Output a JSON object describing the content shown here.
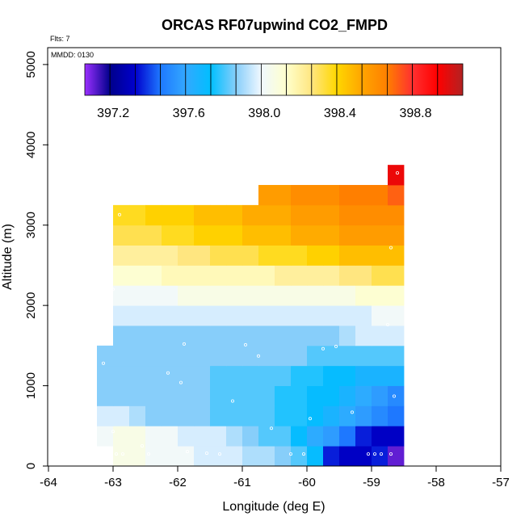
{
  "chart_data": {
    "type": "heatmap",
    "title": "ORCAS RF07upwind CO2_FMPD",
    "flights_label": "Flts: 7",
    "date_label": "MMDD: 0130",
    "xlabel": "Longitude (deg E)",
    "ylabel": "Altitude (m)",
    "xlim": [
      -64,
      -57
    ],
    "ylim": [
      0,
      5200
    ],
    "xticks": [
      "-64",
      "-63",
      "-62",
      "-61",
      "-60",
      "-59",
      "-58",
      "-57"
    ],
    "yticks": [
      "0",
      "1000",
      "2000",
      "3000",
      "4000",
      "5000"
    ],
    "colorbar": {
      "min": 397.05,
      "max": 399.05,
      "tick_values": [
        397.2,
        397.6,
        398.0,
        398.4,
        398.8
      ],
      "tick_labels": [
        "397.2",
        "397.6",
        "398.0",
        "398.4",
        "398.8"
      ],
      "colors": [
        "#9b30ff",
        "#00008b",
        "#0000cd",
        "#1e78ff",
        "#33a8ff",
        "#00bfff",
        "#87cefa",
        "#f0f8ff",
        "#ffffcc",
        "#ffe680",
        "#ffd700",
        "#ffa500",
        "#ff7f00",
        "#ff3030",
        "#ff0000",
        "#b22222"
      ],
      "segments": 15
    },
    "grid": {
      "lon_start": -63.25,
      "lon_step": 0.25,
      "alt_step": 250,
      "cells": [
        {
          "alt": 0,
          "lon0": -63.0,
          "values": [
            398.05,
            398.05,
            398.0,
            398.0,
            398.0,
            397.95,
            397.95,
            397.95,
            397.9,
            397.9,
            397.85,
            397.8,
            397.7,
            397.35,
            397.3,
            397.3,
            397.35,
            397.1
          ]
        },
        {
          "alt": 250,
          "lon0": -63.25,
          "values": [
            398.0,
            398.05,
            398.05,
            398.0,
            398.0,
            397.95,
            397.95,
            397.95,
            397.9,
            397.85,
            397.8,
            397.8,
            397.7,
            397.6,
            397.55,
            397.45,
            397.35,
            397.3,
            397.3
          ]
        },
        {
          "alt": 500,
          "lon0": -63.25,
          "values": [
            397.95,
            397.95,
            397.9,
            397.85,
            397.85,
            397.85,
            397.85,
            397.8,
            397.8,
            397.8,
            397.8,
            397.75,
            397.75,
            397.7,
            397.65,
            397.6,
            397.55,
            397.5,
            397.45
          ]
        },
        {
          "alt": 750,
          "lon0": -63.25,
          "values": [
            397.85,
            397.85,
            397.85,
            397.85,
            397.85,
            397.85,
            397.85,
            397.8,
            397.8,
            397.8,
            397.8,
            397.75,
            397.75,
            397.7,
            397.7,
            397.65,
            397.6,
            397.55,
            397.5
          ]
        },
        {
          "alt": 1000,
          "lon0": -63.25,
          "values": [
            397.85,
            397.85,
            397.85,
            397.85,
            397.85,
            397.85,
            397.85,
            397.8,
            397.8,
            397.8,
            397.8,
            397.8,
            397.75,
            397.75,
            397.7,
            397.7,
            397.65,
            397.65,
            397.65
          ]
        },
        {
          "alt": 1250,
          "lon0": -63.25,
          "values": [
            397.85,
            397.85,
            397.85,
            397.85,
            397.85,
            397.85,
            397.85,
            397.85,
            397.85,
            397.85,
            397.85,
            397.85,
            397.85,
            397.8,
            397.8,
            397.8,
            397.8,
            397.8,
            397.8
          ]
        },
        {
          "alt": 1500,
          "lon0": -63.0,
          "values": [
            397.85,
            397.85,
            397.85,
            397.85,
            397.85,
            397.85,
            397.85,
            397.85,
            397.85,
            397.85,
            397.85,
            397.85,
            397.85,
            397.85,
            397.9,
            397.95,
            397.95,
            397.95
          ]
        },
        {
          "alt": 1750,
          "lon0": -63.0,
          "values": [
            397.95,
            397.95,
            397.95,
            397.95,
            397.95,
            397.95,
            397.95,
            397.95,
            397.95,
            397.95,
            397.95,
            397.95,
            397.95,
            397.95,
            397.95,
            397.95,
            398.0,
            398.0
          ]
        },
        {
          "alt": 2000,
          "lon0": -63.0,
          "values": [
            398.0,
            398.0,
            398.0,
            398.0,
            398.05,
            398.05,
            398.05,
            398.05,
            398.05,
            398.05,
            398.05,
            398.05,
            398.05,
            398.05,
            398.05,
            398.1,
            398.1,
            398.1
          ]
        },
        {
          "alt": 2250,
          "lon0": -63.0,
          "values": [
            398.1,
            398.1,
            398.1,
            398.15,
            398.15,
            398.15,
            398.15,
            398.15,
            398.15,
            398.15,
            398.2,
            398.2,
            398.2,
            398.2,
            398.25,
            398.25,
            398.3,
            398.3
          ]
        },
        {
          "alt": 2500,
          "lon0": -63.0,
          "values": [
            398.2,
            398.2,
            398.2,
            398.2,
            398.25,
            398.25,
            398.3,
            398.3,
            398.3,
            398.35,
            398.35,
            398.35,
            398.4,
            398.4,
            398.45,
            398.45,
            398.45,
            398.45
          ]
        },
        {
          "alt": 2750,
          "lon0": -63.0,
          "values": [
            398.3,
            398.3,
            398.3,
            398.35,
            398.35,
            398.4,
            398.4,
            398.4,
            398.45,
            398.45,
            398.45,
            398.5,
            398.5,
            398.5,
            398.55,
            398.55,
            398.55,
            398.55
          ]
        },
        {
          "alt": 3000,
          "lon0": -63.0,
          "values": [
            398.35,
            398.35,
            398.4,
            398.4,
            398.4,
            398.45,
            398.45,
            398.45,
            398.5,
            398.5,
            398.5,
            398.55,
            398.55,
            398.55,
            398.6,
            398.6,
            398.6,
            398.6
          ]
        },
        {
          "alt": 3250,
          "lon0": -60.75,
          "values": [
            398.55,
            398.55,
            398.6,
            398.6,
            398.6,
            398.65,
            398.65,
            398.65,
            398.7
          ]
        },
        {
          "alt": 3500,
          "lon0": -58.75,
          "values": [
            398.95
          ]
        }
      ]
    },
    "sample_points": [
      [
        -62.95,
        150
      ],
      [
        -62.85,
        150
      ],
      [
        -62.55,
        250
      ],
      [
        -62.45,
        150
      ],
      [
        -61.85,
        180
      ],
      [
        -61.55,
        160
      ],
      [
        -61.35,
        150
      ],
      [
        -60.25,
        150
      ],
      [
        -60.05,
        150
      ],
      [
        -59.05,
        150
      ],
      [
        -58.95,
        150
      ],
      [
        -58.85,
        150
      ],
      [
        -58.7,
        150
      ],
      [
        -63.0,
        430
      ],
      [
        -60.55,
        470
      ],
      [
        -59.95,
        590
      ],
      [
        -59.3,
        670
      ],
      [
        -61.15,
        810
      ],
      [
        -58.65,
        870
      ],
      [
        -61.95,
        1040
      ],
      [
        -62.15,
        1160
      ],
      [
        -63.15,
        1280
      ],
      [
        -60.75,
        1370
      ],
      [
        -59.75,
        1460
      ],
      [
        -59.55,
        1490
      ],
      [
        -60.95,
        1510
      ],
      [
        -61.9,
        1520
      ],
      [
        -58.75,
        1760
      ],
      [
        -63.0,
        2200
      ],
      [
        -58.7,
        2720
      ],
      [
        -62.9,
        3130
      ],
      [
        -58.6,
        3650
      ]
    ]
  }
}
